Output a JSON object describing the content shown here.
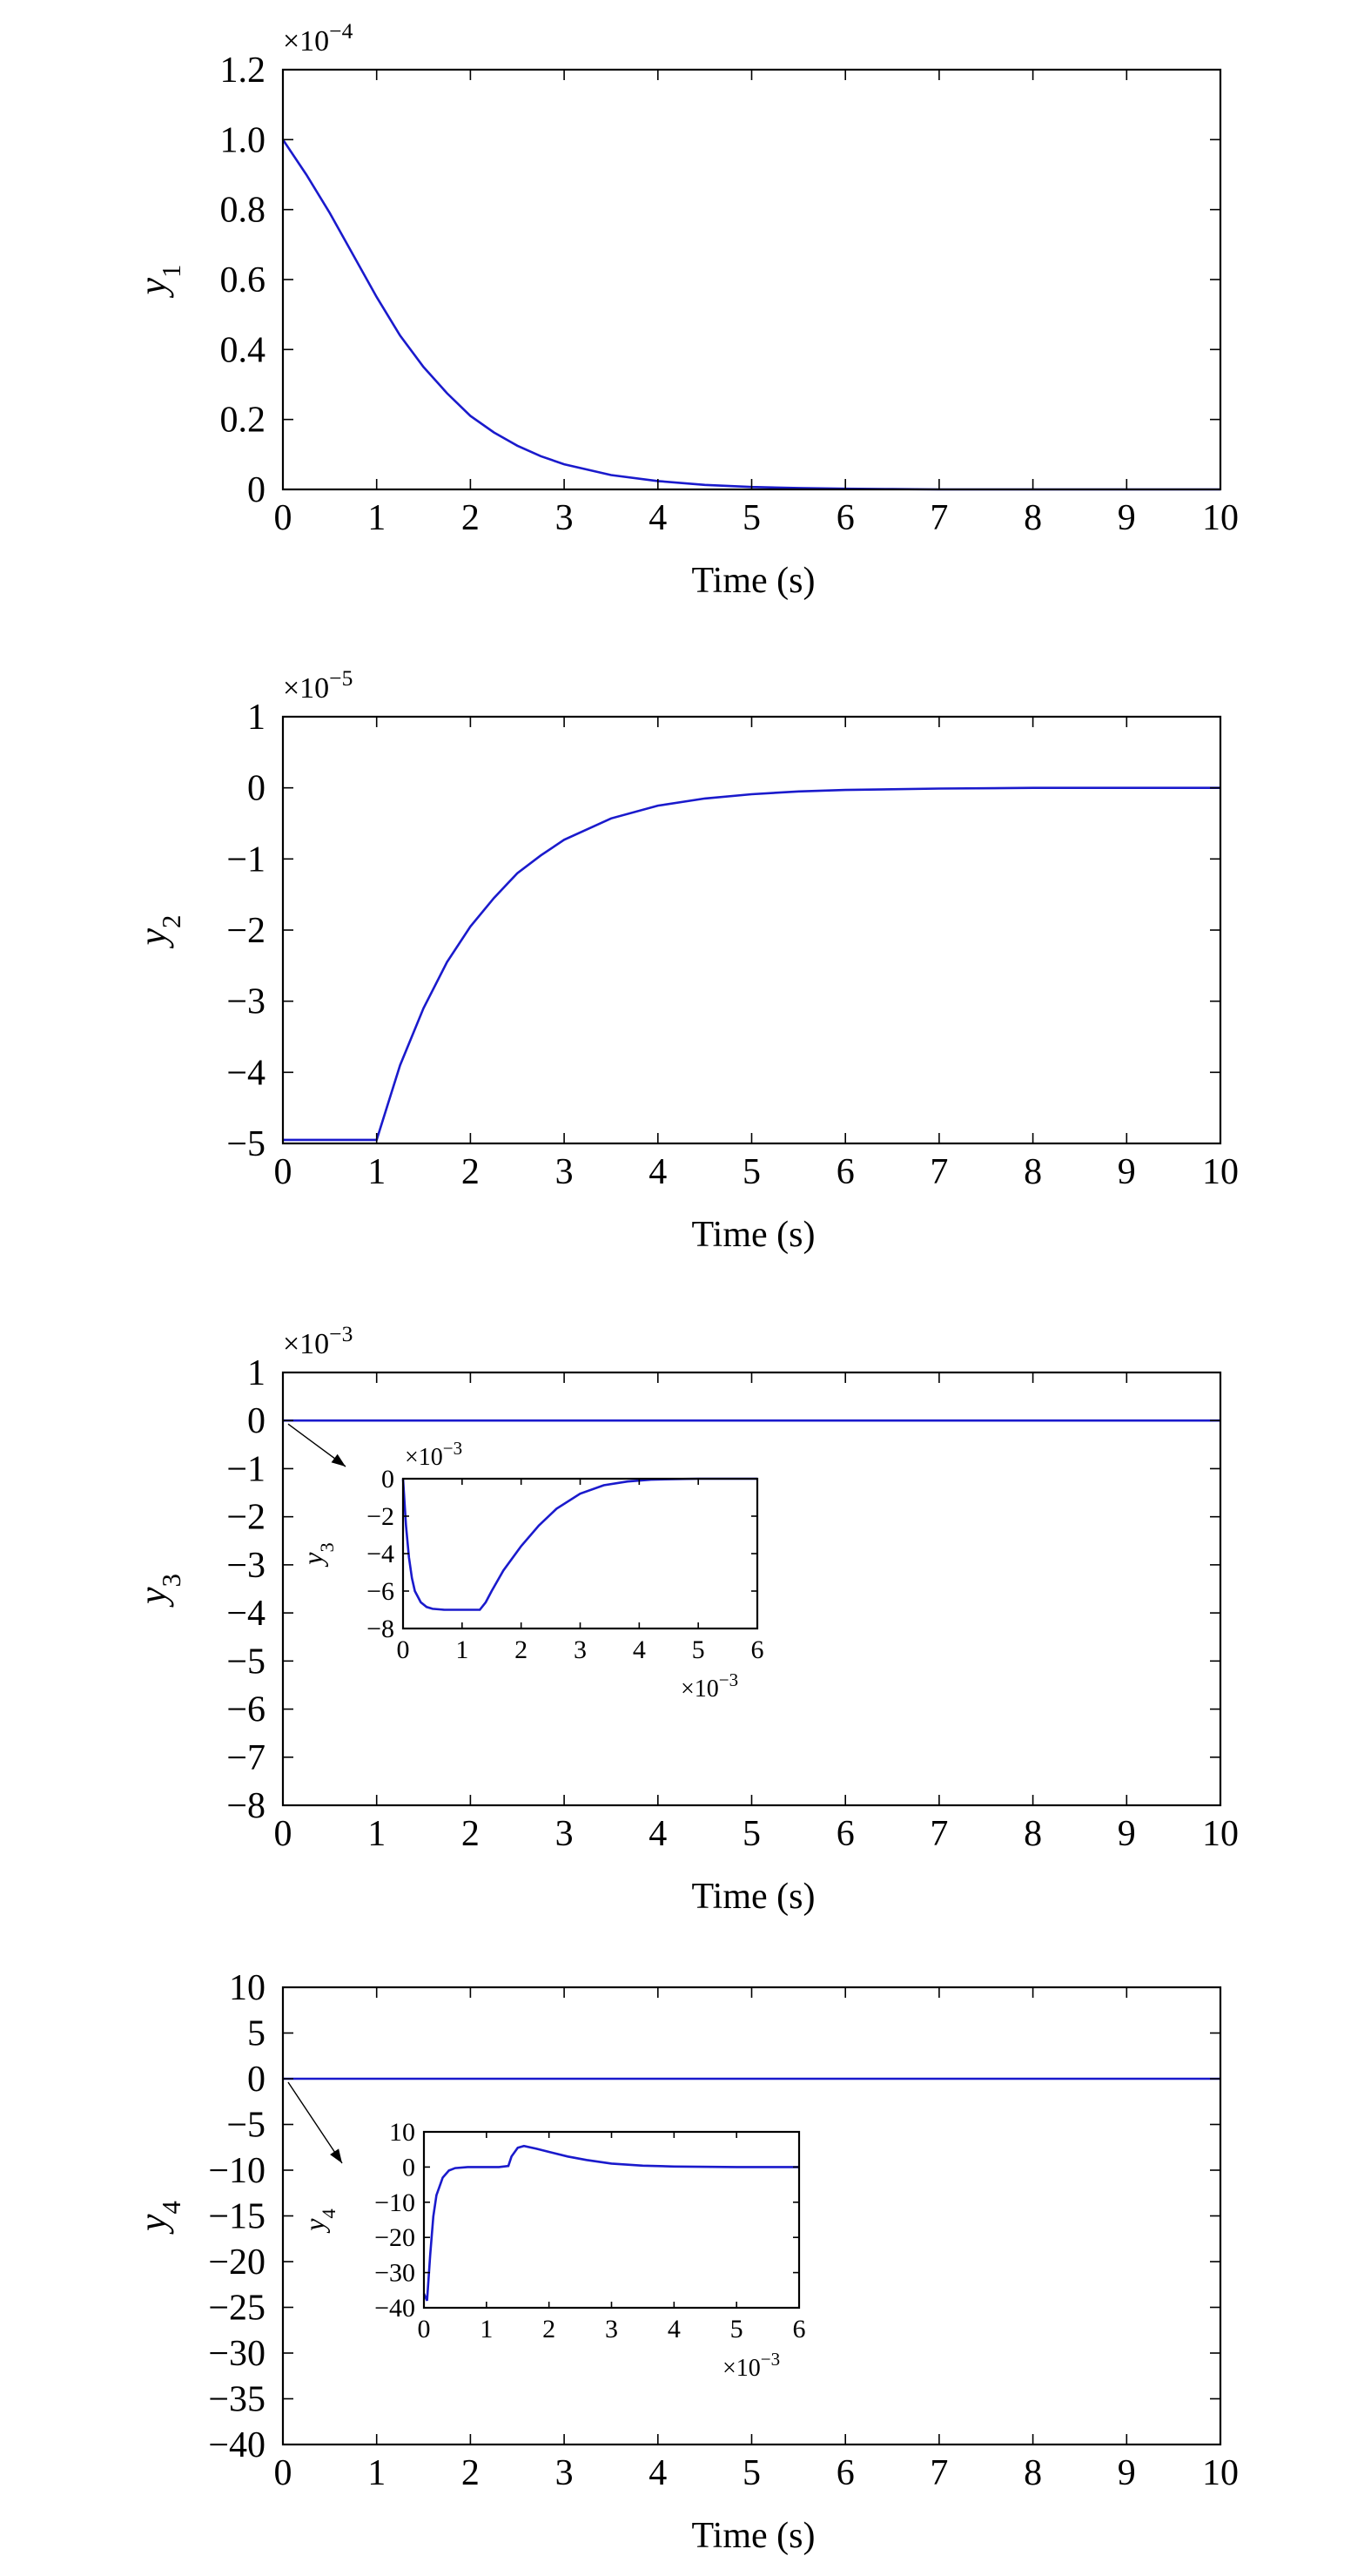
{
  "chart_data": [
    {
      "type": "line",
      "xlabel": "Time (s)",
      "ylabel": "y",
      "ylabel_sub": "1",
      "y_multiplier": "×10",
      "y_multiplier_exp": "−4",
      "xlim": [
        0,
        10
      ],
      "ylim": [
        0,
        1.2
      ],
      "xticks": [
        "0",
        "1",
        "2",
        "3",
        "4",
        "5",
        "6",
        "7",
        "8",
        "9",
        "10"
      ],
      "yticks": [
        "0",
        "0.2",
        "0.4",
        "0.6",
        "0.8",
        "1.0",
        "1.2"
      ],
      "color": "#1a1acc",
      "series": [
        {
          "x": [
            0,
            0.25,
            0.5,
            0.75,
            1,
            1.25,
            1.5,
            1.75,
            2,
            2.25,
            2.5,
            2.75,
            3,
            3.5,
            4,
            4.5,
            5,
            5.5,
            6,
            6.5,
            7,
            8,
            9,
            10
          ],
          "y": [
            1.0,
            0.9,
            0.79,
            0.67,
            0.55,
            0.44,
            0.35,
            0.275,
            0.21,
            0.163,
            0.125,
            0.095,
            0.072,
            0.041,
            0.024,
            0.013,
            0.007,
            0.004,
            0.002,
            0.001,
            0,
            0,
            0,
            0
          ]
        }
      ]
    },
    {
      "type": "line",
      "xlabel": "Time (s)",
      "ylabel": "y",
      "ylabel_sub": "2",
      "y_multiplier": "×10",
      "y_multiplier_exp": "−5",
      "xlim": [
        0,
        10
      ],
      "ylim": [
        -5,
        1
      ],
      "xticks": [
        "0",
        "1",
        "2",
        "3",
        "4",
        "5",
        "6",
        "7",
        "8",
        "9",
        "10"
      ],
      "yticks": [
        "−5",
        "−4",
        "−3",
        "−2",
        "−1",
        "0",
        "1"
      ],
      "ytick_values": [
        -5,
        -4,
        -3,
        -2,
        -1,
        0,
        1
      ],
      "color": "#1a1acc",
      "series": [
        {
          "x": [
            0,
            0.5,
            1,
            1.25,
            1.5,
            1.75,
            2,
            2.25,
            2.5,
            2.75,
            3,
            3.5,
            4,
            4.5,
            5,
            5.5,
            6,
            7,
            8,
            9,
            10
          ],
          "y": [
            -4.95,
            -4.95,
            -4.95,
            -3.9,
            -3.1,
            -2.45,
            -1.95,
            -1.55,
            -1.2,
            -0.95,
            -0.73,
            -0.43,
            -0.25,
            -0.15,
            -0.09,
            -0.05,
            -0.03,
            -0.01,
            0,
            0,
            0
          ]
        }
      ]
    },
    {
      "type": "line",
      "xlabel": "Time (s)",
      "ylabel": "y",
      "ylabel_sub": "3",
      "y_multiplier": "×10",
      "y_multiplier_exp": "−3",
      "xlim": [
        0,
        10
      ],
      "ylim": [
        -8,
        1
      ],
      "xticks": [
        "0",
        "1",
        "2",
        "3",
        "4",
        "5",
        "6",
        "7",
        "8",
        "9",
        "10"
      ],
      "yticks": [
        "−8",
        "−7",
        "−6",
        "−5",
        "−4",
        "−3",
        "−2",
        "−1",
        "0",
        "1"
      ],
      "ytick_values": [
        -8,
        -7,
        -6,
        -5,
        -4,
        -3,
        -2,
        -1,
        0,
        1
      ],
      "color": "#1a1acc",
      "series": [
        {
          "x": [
            0,
            10
          ],
          "y": [
            0,
            0
          ]
        }
      ],
      "inset": {
        "ylabel": "y",
        "ylabel_sub": "3",
        "y_multiplier": "×10",
        "y_multiplier_exp": "−3",
        "x_multiplier": "×10",
        "x_multiplier_exp": "−3",
        "xlim": [
          0,
          6
        ],
        "ylim": [
          -8,
          0
        ],
        "xticks": [
          "0",
          "1",
          "2",
          "3",
          "4",
          "5",
          "6"
        ],
        "yticks": [
          "−8",
          "−6",
          "−4",
          "−2",
          "0"
        ],
        "ytick_values": [
          -8,
          -6,
          -4,
          -2,
          0
        ],
        "series": [
          {
            "x": [
              0,
              0.05,
              0.1,
              0.15,
              0.2,
              0.3,
              0.4,
              0.5,
              0.7,
              1.0,
              1.2,
              1.3,
              1.4,
              1.5,
              1.7,
              2.0,
              2.3,
              2.6,
              3.0,
              3.4,
              3.8,
              4.2,
              4.6,
              5.0,
              6.0
            ],
            "y": [
              0,
              -2.5,
              -4.2,
              -5.3,
              -6.0,
              -6.6,
              -6.85,
              -6.95,
              -7.0,
              -7.0,
              -7.0,
              -7.0,
              -6.6,
              -6.0,
              -4.9,
              -3.6,
              -2.5,
              -1.6,
              -0.8,
              -0.35,
              -0.15,
              -0.05,
              -0.02,
              0,
              0
            ]
          }
        ]
      }
    },
    {
      "type": "line",
      "xlabel": "Time (s)",
      "ylabel": "y",
      "ylabel_sub": "4",
      "xlim": [
        0,
        10
      ],
      "ylim": [
        -40,
        10
      ],
      "xticks": [
        "0",
        "1",
        "2",
        "3",
        "4",
        "5",
        "6",
        "7",
        "8",
        "9",
        "10"
      ],
      "yticks": [
        "−40",
        "−35",
        "−30",
        "−25",
        "−20",
        "−15",
        "−10",
        "−5",
        "0",
        "5",
        "10"
      ],
      "ytick_values": [
        -40,
        -35,
        -30,
        -25,
        -20,
        -15,
        -10,
        -5,
        0,
        5,
        10
      ],
      "color": "#1a1acc",
      "series": [
        {
          "x": [
            0,
            10
          ],
          "y": [
            0,
            0
          ]
        }
      ],
      "inset": {
        "ylabel": "y",
        "ylabel_sub": "4",
        "x_multiplier": "×10",
        "x_multiplier_exp": "−3",
        "xlim": [
          0,
          6
        ],
        "ylim": [
          -40,
          10
        ],
        "xticks": [
          "0",
          "1",
          "2",
          "3",
          "4",
          "5",
          "6"
        ],
        "yticks": [
          "−40",
          "−30",
          "−20",
          "−10",
          "0",
          "10"
        ],
        "ytick_values": [
          -40,
          -30,
          -20,
          -10,
          0,
          10
        ],
        "series": [
          {
            "x": [
              0,
              0.05,
              0.1,
              0.15,
              0.2,
              0.3,
              0.4,
              0.5,
              0.7,
              1.0,
              1.2,
              1.35,
              1.4,
              1.5,
              1.6,
              1.8,
              2.0,
              2.3,
              2.6,
              3.0,
              3.5,
              4.0,
              5.0,
              6.0
            ],
            "y": [
              -36,
              -38,
              -25,
              -14,
              -8,
              -3,
              -1,
              -0.3,
              0,
              0,
              0,
              0.3,
              3,
              5.5,
              6,
              5.2,
              4.3,
              3,
              2,
              1,
              0.4,
              0.15,
              0,
              0
            ]
          }
        ]
      }
    }
  ]
}
